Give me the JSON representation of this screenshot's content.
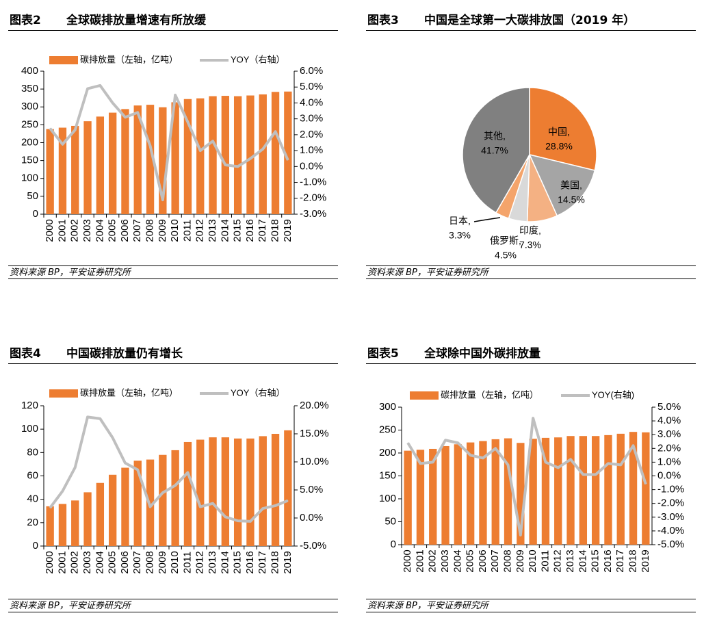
{
  "colors": {
    "bar": "#ED7D31",
    "line": "#BFBFBF"
  },
  "panels": [
    {
      "num": "图表2",
      "title": "全球碳排放量增速有所放缓",
      "source": "资料来源 BP，平安证券研究所"
    },
    {
      "num": "图表3",
      "title": "中国是全球第一大碳排放国（2019 年）",
      "source": "资料来源 BP，平安证券研究所"
    },
    {
      "num": "图表4",
      "title": "中国碳排放量仍有增长",
      "source": "资料来源 BP，平安证券研究所"
    },
    {
      "num": "图表5",
      "title": "全球除中国外碳排放量",
      "source": "资料来源 BP，平安证券研究所"
    }
  ],
  "chart_data": [
    {
      "type": "bar+line",
      "title": "全球碳排放量增速有所放缓",
      "categories": [
        "2000",
        "2001",
        "2002",
        "2003",
        "2004",
        "2005",
        "2006",
        "2007",
        "2008",
        "2009",
        "2010",
        "2011",
        "2012",
        "2013",
        "2014",
        "2015",
        "2016",
        "2017",
        "2018",
        "2019"
      ],
      "legend": [
        "碳排放量（左轴，亿吨）",
        "YOY（右轴）"
      ],
      "series": [
        {
          "name": "碳排放量（左轴，亿吨）",
          "axis": "left",
          "kind": "bar",
          "values": [
            238,
            242,
            247,
            260,
            273,
            284,
            294,
            304,
            306,
            299,
            313,
            322,
            324,
            330,
            331,
            330,
            332,
            335,
            342,
            343
          ]
        },
        {
          "name": "YOY（右轴）",
          "axis": "right",
          "kind": "line",
          "values": [
            2.4,
            1.4,
            2.3,
            4.9,
            5.1,
            4.0,
            3.1,
            3.4,
            1.3,
            -2.1,
            4.5,
            2.8,
            1.0,
            1.6,
            0.1,
            0.0,
            0.5,
            1.1,
            2.2,
            0.4
          ]
        }
      ],
      "yleft": {
        "min": 0,
        "max": 400,
        "step": 50,
        "ticks": [
          "0",
          "50",
          "100",
          "150",
          "200",
          "250",
          "300",
          "350",
          "400"
        ]
      },
      "yright": {
        "min": -3,
        "max": 6,
        "step": 1,
        "ticks": [
          "-3.0%",
          "-2.0%",
          "-1.0%",
          "0.0%",
          "1.0%",
          "2.0%",
          "3.0%",
          "4.0%",
          "5.0%",
          "6.0%"
        ]
      }
    },
    {
      "type": "pie",
      "title": "中国是全球第一大碳排放国（2019 年）",
      "slices": [
        {
          "name": "中国",
          "value": 28.8,
          "label": "28.8%",
          "color": "#ED7D31"
        },
        {
          "name": "美国",
          "value": 14.5,
          "label": "14.5%",
          "color": "#A5A5A5"
        },
        {
          "name": "印度",
          "value": 7.3,
          "label": "7.3%",
          "color": "#F4B183"
        },
        {
          "name": "俄罗斯",
          "value": 4.5,
          "label": "4.5%",
          "color": "#D9D9D9"
        },
        {
          "name": "日本",
          "value": 3.3,
          "label": "3.3%",
          "color": "#F4A46B"
        },
        {
          "name": "其他",
          "value": 41.7,
          "label": "41.7%",
          "color": "#808080"
        }
      ]
    },
    {
      "type": "bar+line",
      "title": "中国碳排放量仍有增长",
      "categories": [
        "2000",
        "2001",
        "2002",
        "2003",
        "2004",
        "2005",
        "2006",
        "2007",
        "2008",
        "2009",
        "2010",
        "2011",
        "2012",
        "2013",
        "2014",
        "2015",
        "2016",
        "2017",
        "2018",
        "2019"
      ],
      "legend": [
        "碳排放量（左轴，亿吨）",
        "YOY（右轴）"
      ],
      "series": [
        {
          "name": "碳排放量（左轴，亿吨）",
          "axis": "left",
          "kind": "bar",
          "values": [
            34,
            36,
            39,
            46,
            54,
            61,
            67,
            73,
            74,
            78,
            82,
            89,
            91,
            93,
            93,
            92,
            92,
            94,
            96,
            99
          ]
        },
        {
          "name": "YOY（右轴）",
          "axis": "right",
          "kind": "line",
          "values": [
            1.8,
            4.8,
            9.0,
            18.0,
            17.7,
            14.3,
            9.8,
            8.6,
            2.0,
            4.5,
            5.8,
            8.1,
            2.0,
            2.6,
            0.2,
            -0.5,
            -0.6,
            1.7,
            2.2,
            3.1
          ]
        }
      ],
      "yleft": {
        "min": 0,
        "max": 120,
        "step": 20,
        "ticks": [
          "0",
          "20",
          "40",
          "60",
          "80",
          "100",
          "120"
        ]
      },
      "yright": {
        "min": -5,
        "max": 20,
        "step": 5,
        "ticks": [
          "-5.0%",
          "0.0%",
          "5.0%",
          "10.0%",
          "15.0%",
          "20.0%"
        ]
      }
    },
    {
      "type": "bar+line",
      "title": "全球除中国外碳排放量",
      "categories": [
        "2000",
        "2001",
        "2002",
        "2003",
        "2004",
        "2005",
        "2006",
        "2007",
        "2008",
        "2009",
        "2010",
        "2011",
        "2012",
        "2013",
        "2014",
        "2015",
        "2016",
        "2017",
        "2018",
        "2019"
      ],
      "legend": [
        "碳排放量（左轴，亿吨）",
        "YOY(右轴)"
      ],
      "series": [
        {
          "name": "碳排放量（左轴，亿吨）",
          "axis": "left",
          "kind": "bar",
          "values": [
            205,
            207,
            209,
            215,
            219,
            223,
            226,
            230,
            232,
            222,
            231,
            233,
            234,
            237,
            237,
            237,
            239,
            242,
            246,
            245
          ]
        },
        {
          "name": "YOY(右轴)",
          "axis": "right",
          "kind": "line",
          "values": [
            2.4,
            0.9,
            1.0,
            2.6,
            2.4,
            1.5,
            1.3,
            2.0,
            0.8,
            -4.3,
            4.2,
            1.0,
            0.6,
            1.2,
            0.1,
            0.1,
            0.9,
            0.8,
            2.2,
            -0.6
          ]
        }
      ],
      "yleft": {
        "min": 0,
        "max": 300,
        "step": 50,
        "ticks": [
          "0",
          "50",
          "100",
          "150",
          "200",
          "250",
          "300"
        ]
      },
      "yright": {
        "min": -5,
        "max": 5,
        "step": 1,
        "ticks": [
          "-5.0%",
          "-4.0%",
          "-3.0%",
          "-2.0%",
          "-1.0%",
          "0.0%",
          "1.0%",
          "2.0%",
          "3.0%",
          "4.0%",
          "5.0%"
        ]
      }
    }
  ]
}
